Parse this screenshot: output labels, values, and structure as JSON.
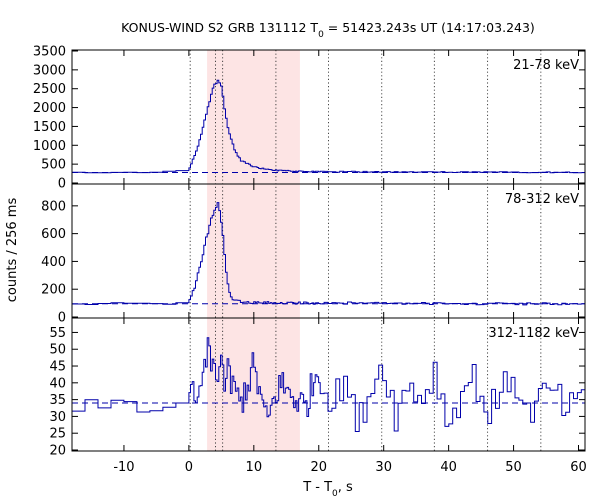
{
  "chart_data": {
    "type": "line",
    "title_main": "KONUS-WIND S2 GRB 131112 T",
    "title_sub": "0",
    "title_rest": " = 51423.243s UT (14:17:03.243)",
    "ylabel": "counts / 256 ms",
    "xlabel_main": "T - T",
    "xlabel_sub": "0",
    "xlabel_rest": ", s",
    "xlim": [
      -18,
      61
    ],
    "xticks": [
      -10,
      0,
      10,
      20,
      30,
      40,
      50,
      60
    ],
    "shaded_interval": [
      2.8,
      17.1
    ],
    "shaded_color": "#fde4e4",
    "line_color": "#0000aa",
    "background_color": "#ffffff",
    "vertical_markers": [
      0.2,
      4.1,
      5.2,
      13.4,
      21.5,
      29.7,
      37.8,
      46.0,
      54.2
    ],
    "panels": [
      {
        "label": "21-78 keV",
        "ylim": [
          0,
          3500
        ],
        "yticks": [
          0,
          500,
          1000,
          1500,
          2000,
          2500,
          3000,
          3500
        ],
        "background_level": 280,
        "series": {
          "name": "",
          "x": [
            -18,
            -10,
            -2,
            0,
            0.5,
            1,
            1.5,
            2,
            2.5,
            3,
            3.5,
            4,
            4.5,
            5,
            5.5,
            6,
            7,
            8,
            10,
            12,
            14,
            17,
            20,
            30,
            40,
            50,
            61
          ],
          "y": [
            280,
            280,
            300,
            360,
            550,
            780,
            1050,
            1350,
            1700,
            2050,
            2400,
            2620,
            2700,
            2550,
            2000,
            1450,
            900,
            600,
            430,
            360,
            330,
            310,
            300,
            295,
            290,
            285,
            280
          ]
        }
      },
      {
        "label": "78-312 keV",
        "ylim": [
          0,
          950
        ],
        "yticks": [
          0,
          200,
          400,
          600,
          800
        ],
        "background_level": 95,
        "series": {
          "name": "",
          "x": [
            -18,
            -10,
            -2,
            0,
            0.5,
            1,
            1.5,
            2,
            2.5,
            3,
            3.5,
            4,
            4.5,
            5,
            5.5,
            6,
            6.5,
            7,
            8,
            10,
            12,
            15,
            20,
            30,
            40,
            50,
            61
          ],
          "y": [
            95,
            95,
            100,
            110,
            160,
            230,
            320,
            420,
            520,
            620,
            700,
            790,
            820,
            700,
            450,
            230,
            150,
            120,
            110,
            105,
            105,
            100,
            100,
            100,
            95,
            95,
            95
          ]
        }
      },
      {
        "label": "312-1182 keV",
        "ylim": [
          20,
          59
        ],
        "yticks": [
          20,
          25,
          30,
          35,
          40,
          45,
          50,
          55
        ],
        "background_level": 34,
        "series": {
          "name": "",
          "x": [
            -18,
            -14,
            -11,
            -9,
            -6,
            -4,
            -2,
            0,
            0.5,
            1,
            1.5,
            2,
            2.5,
            3,
            3.5,
            4,
            4.5,
            5,
            5.5,
            6,
            7,
            8,
            10,
            12,
            14,
            16,
            18,
            20,
            22,
            24,
            26,
            28,
            30,
            32,
            34,
            36,
            38,
            40,
            42,
            44,
            46,
            48,
            50,
            52,
            54,
            56,
            58,
            61
          ],
          "y": [
            34,
            34,
            36,
            33,
            31,
            33,
            30,
            41,
            37,
            33,
            40,
            36,
            46,
            55,
            42,
            50,
            38,
            52,
            40,
            47,
            37,
            34,
            45,
            28,
            40,
            36,
            33,
            45,
            32,
            42,
            27,
            38,
            46,
            30,
            40,
            35,
            44,
            27,
            37,
            42,
            31,
            36,
            43,
            30,
            35,
            38,
            32,
            34
          ]
        }
      }
    ]
  }
}
